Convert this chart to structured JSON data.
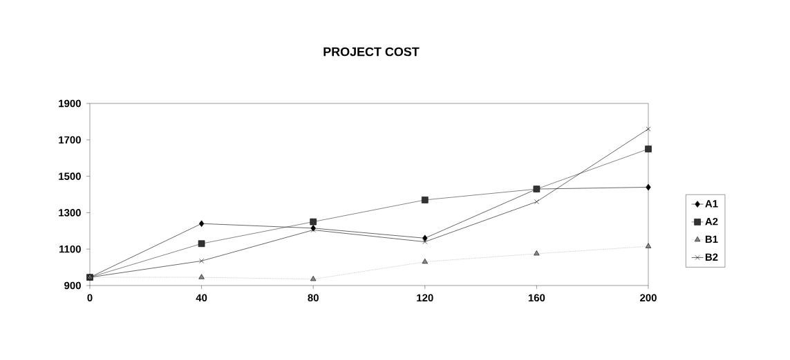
{
  "chart_data": {
    "type": "line",
    "title": "PROJECT COST",
    "x": [
      0,
      40,
      80,
      120,
      160,
      200
    ],
    "xlim": [
      0,
      200
    ],
    "xticks": [
      0,
      40,
      80,
      120,
      160,
      200
    ],
    "ylim": [
      900,
      1900
    ],
    "yticks": [
      900,
      1100,
      1300,
      1500,
      1700,
      1900
    ],
    "grid": false,
    "legend": "right",
    "series": [
      {
        "name": "A1",
        "color": "#000000",
        "marker": "diamond",
        "line_style": "solid",
        "values": [
          945,
          1240,
          1215,
          1160,
          1430,
          1440
        ]
      },
      {
        "name": "A2",
        "color": "#333333",
        "marker": "square",
        "line_style": "solid",
        "values": [
          945,
          1130,
          1250,
          1370,
          1430,
          1650
        ]
      },
      {
        "name": "B1",
        "color": "#888888",
        "marker": "triangle",
        "line_style": "dotted",
        "values": [
          945,
          945,
          935,
          1030,
          1075,
          1115
        ]
      },
      {
        "name": "B2",
        "color": "#000000",
        "marker": "cross",
        "line_style": "solid",
        "values": [
          945,
          1035,
          1205,
          1140,
          1360,
          1760
        ]
      }
    ]
  }
}
